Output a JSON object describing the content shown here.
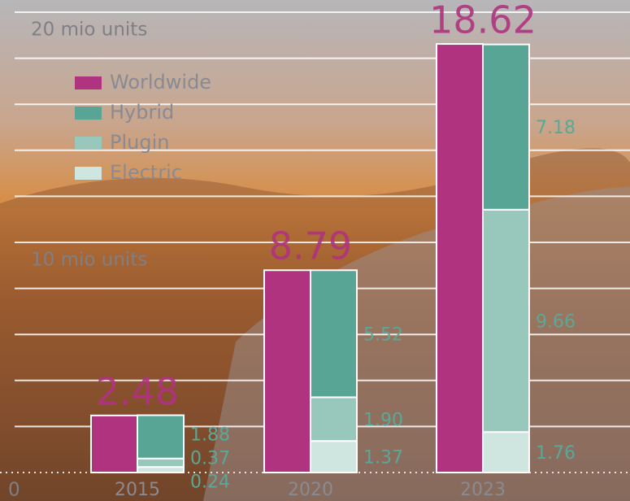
{
  "chart_data": {
    "type": "grouped-stacked-bar",
    "categories": [
      "2015",
      "2020",
      "2023"
    ],
    "total": {
      "name": "Worldwide",
      "color": "#b0337f",
      "values": [
        2.48,
        8.79,
        18.62
      ]
    },
    "series": [
      {
        "name": "Electric",
        "color": "#cfe5df",
        "values": [
          0.24,
          1.37,
          1.76
        ]
      },
      {
        "name": "Plugin",
        "color": "#98c8bb",
        "values": [
          0.37,
          1.9,
          9.66
        ],
        "value_labels": [
          "0.37",
          "1.90",
          "9.66"
        ]
      },
      {
        "name": "Hybrid",
        "color": "#58a596",
        "values": [
          1.88,
          5.52,
          7.18
        ]
      }
    ],
    "ylim": [
      0,
      20
    ],
    "yticks": [
      0,
      {
        "value": 10,
        "label": "10 mio units"
      },
      {
        "value": 20,
        "label": "20 mio units"
      }
    ],
    "ygrid": [
      2,
      4,
      6,
      8,
      10,
      12,
      14,
      16,
      18,
      20
    ]
  }
}
